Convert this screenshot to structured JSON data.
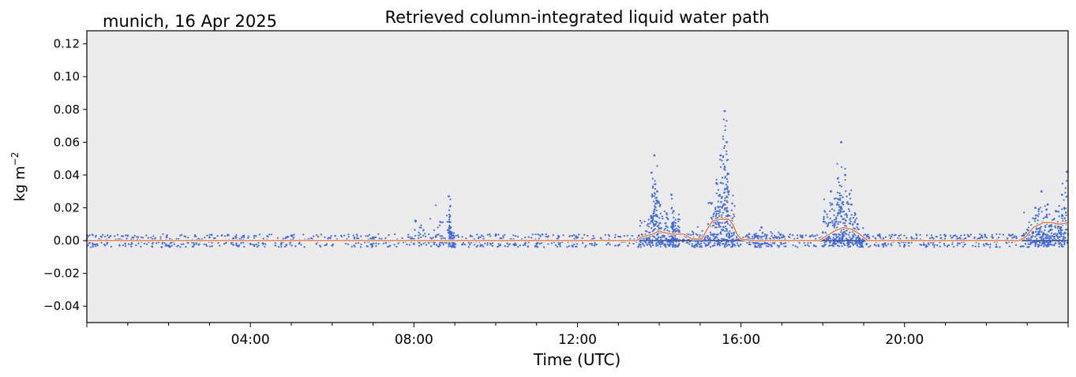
{
  "chart_data": {
    "type": "scatter",
    "title": "Retrieved column-integrated liquid water path",
    "location_date": "munich, 16 Apr 2025",
    "xlabel": "Time (UTC)",
    "ylabel": "kg m",
    "ylabel_exponent": "−2",
    "x_unit": "hours UTC",
    "xlim": [
      0,
      24
    ],
    "ylim": [
      -0.05,
      0.128
    ],
    "x_ticks": [
      {
        "value": 4,
        "label": "04:00"
      },
      {
        "value": 8,
        "label": "08:00"
      },
      {
        "value": 12,
        "label": "12:00"
      },
      {
        "value": 16,
        "label": "16:00"
      },
      {
        "value": 20,
        "label": "20:00"
      }
    ],
    "y_ticks": [
      {
        "value": -0.04,
        "label": "−0.04"
      },
      {
        "value": -0.02,
        "label": "−0.02"
      },
      {
        "value": 0.0,
        "label": "0.00"
      },
      {
        "value": 0.02,
        "label": "0.02"
      },
      {
        "value": 0.04,
        "label": "0.04"
      },
      {
        "value": 0.06,
        "label": "0.06"
      },
      {
        "value": 0.08,
        "label": "0.08"
      },
      {
        "value": 0.1,
        "label": "0.10"
      },
      {
        "value": 0.12,
        "label": "0.12"
      }
    ],
    "background": "#ebebeb",
    "zero_line": 0.0,
    "series": [
      {
        "kind": "scatter",
        "color": "#4169e1",
        "baseline_noise_band": [
          -0.004,
          0.004
        ],
        "points": [
          [
            0.0,
            0.0
          ],
          [
            1.0,
            0.003
          ],
          [
            2.0,
            -0.003
          ],
          [
            3.0,
            0.002
          ],
          [
            4.0,
            -0.002
          ],
          [
            5.0,
            0.003
          ],
          [
            6.0,
            -0.003
          ],
          [
            7.0,
            0.002
          ],
          [
            8.0,
            -0.002
          ],
          [
            8.85,
            0.027
          ],
          [
            8.9,
            0.008
          ],
          [
            9.0,
            -0.004
          ],
          [
            10.0,
            0.003
          ],
          [
            11.0,
            -0.002
          ],
          [
            12.0,
            0.002
          ],
          [
            13.0,
            -0.003
          ],
          [
            13.5,
            0.003
          ],
          [
            13.8,
            0.015
          ],
          [
            13.88,
            0.052
          ],
          [
            13.95,
            0.03
          ],
          [
            14.05,
            0.005
          ],
          [
            14.3,
            0.028
          ],
          [
            14.35,
            0.018
          ],
          [
            14.5,
            0.004
          ],
          [
            14.8,
            0.001
          ],
          [
            15.2,
            0.01
          ],
          [
            15.4,
            0.035
          ],
          [
            15.5,
            0.052
          ],
          [
            15.6,
            0.079
          ],
          [
            15.65,
            0.06
          ],
          [
            15.7,
            0.03
          ],
          [
            15.85,
            0.005
          ],
          [
            16.2,
            0.004
          ],
          [
            16.5,
            0.008
          ],
          [
            17.0,
            0.002
          ],
          [
            17.5,
            0.002
          ],
          [
            18.0,
            0.005
          ],
          [
            18.2,
            0.03
          ],
          [
            18.35,
            0.022
          ],
          [
            18.45,
            0.06
          ],
          [
            18.55,
            0.04
          ],
          [
            18.7,
            0.022
          ],
          [
            18.85,
            0.01
          ],
          [
            19.0,
            0.003
          ],
          [
            20.0,
            -0.003
          ],
          [
            21.0,
            0.003
          ],
          [
            22.0,
            -0.002
          ],
          [
            22.9,
            0.003
          ],
          [
            23.2,
            0.02
          ],
          [
            23.35,
            0.03
          ],
          [
            23.5,
            0.022
          ],
          [
            23.7,
            0.018
          ],
          [
            23.85,
            0.028
          ],
          [
            23.97,
            0.042
          ]
        ]
      },
      {
        "kind": "line",
        "color": "#e07030",
        "outline": "#ffffff",
        "points": [
          [
            0.0,
            0.0
          ],
          [
            13.45,
            0.0
          ],
          [
            13.55,
            0.002
          ],
          [
            13.7,
            0.003
          ],
          [
            13.85,
            0.004
          ],
          [
            14.0,
            0.006
          ],
          [
            14.1,
            0.005
          ],
          [
            14.3,
            0.004
          ],
          [
            14.6,
            0.004
          ],
          [
            14.8,
            0.001
          ],
          [
            15.05,
            0.001
          ],
          [
            15.15,
            0.006
          ],
          [
            15.3,
            0.012
          ],
          [
            15.5,
            0.013
          ],
          [
            15.7,
            0.013
          ],
          [
            15.8,
            0.01
          ],
          [
            15.9,
            0.004
          ],
          [
            16.0,
            0.001
          ],
          [
            16.3,
            0.0
          ],
          [
            17.0,
            0.0
          ],
          [
            17.9,
            0.0
          ],
          [
            18.1,
            0.003
          ],
          [
            18.3,
            0.006
          ],
          [
            18.5,
            0.008
          ],
          [
            18.7,
            0.007
          ],
          [
            18.9,
            0.004
          ],
          [
            19.1,
            0.0
          ],
          [
            22.8,
            0.0
          ],
          [
            22.95,
            0.002
          ],
          [
            23.15,
            0.008
          ],
          [
            23.4,
            0.011
          ],
          [
            23.6,
            0.011
          ],
          [
            23.8,
            0.01
          ],
          [
            24.0,
            0.011
          ]
        ]
      }
    ]
  }
}
